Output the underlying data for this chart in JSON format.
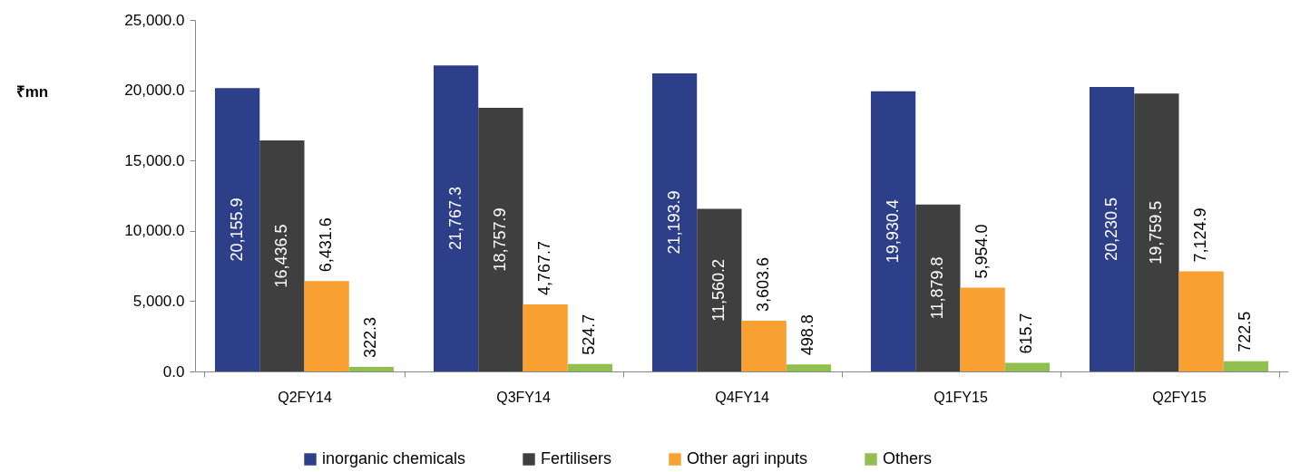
{
  "chart_data": {
    "type": "bar",
    "ylabel": "₹mn",
    "categories": [
      "Q2FY14",
      "Q3FY14",
      "Q4FY14",
      "Q1FY15",
      "Q2FY15"
    ],
    "series": [
      {
        "name": "inorganic chemicals",
        "color": "#2e3f8a",
        "values": [
          20155.9,
          21767.3,
          21193.9,
          19930.4,
          20230.5
        ],
        "value_labels": [
          "20,155.9",
          "21,767.3",
          "21,193.9",
          "19,930.4",
          "20,230.5"
        ]
      },
      {
        "name": "Fertilisers",
        "color": "#3f3f3f",
        "values": [
          16436.5,
          18757.9,
          11560.2,
          11879.8,
          19759.5
        ],
        "value_labels": [
          "16,436.5",
          "18,757.9",
          "11,560.2",
          "11,879.8",
          "19,759.5"
        ]
      },
      {
        "name": "Other agri inputs",
        "color": "#f9a033",
        "values": [
          6431.6,
          4767.7,
          3603.6,
          5954.0,
          7124.9
        ],
        "value_labels": [
          "6,431.6",
          "4,767.7",
          "3,603.6",
          "5,954.0",
          "7,124.9"
        ]
      },
      {
        "name": "Others",
        "color": "#92c050",
        "values": [
          322.3,
          524.7,
          498.8,
          615.7,
          722.5
        ],
        "value_labels": [
          "322.3",
          "524.7",
          "498.8",
          "615.7",
          "722.5"
        ]
      }
    ],
    "ylim": [
      0,
      25000
    ],
    "yticks": [
      {
        "value": 0,
        "label": "0.0"
      },
      {
        "value": 5000,
        "label": "5,000.0"
      },
      {
        "value": 10000,
        "label": "10,000.0"
      },
      {
        "value": 15000,
        "label": "15,000.0"
      },
      {
        "value": 20000,
        "label": "20,000.0"
      },
      {
        "value": 25000,
        "label": "25,000.0"
      }
    ],
    "legend": "bottom",
    "grid": false
  }
}
